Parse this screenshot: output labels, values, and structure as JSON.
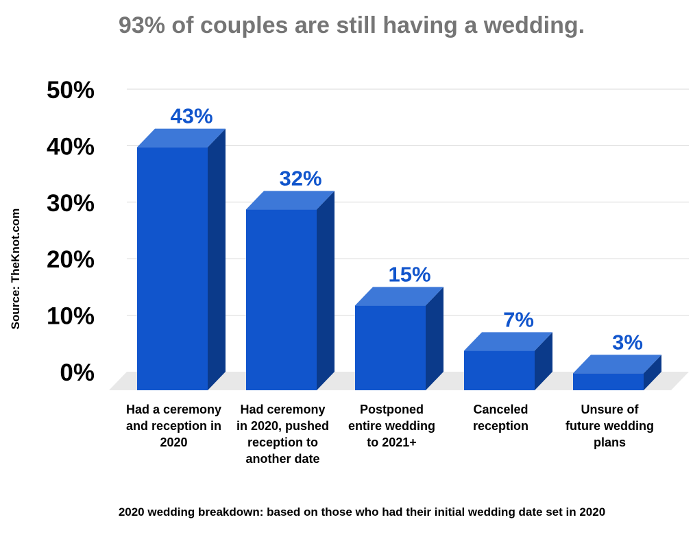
{
  "chart_data": {
    "type": "bar",
    "title": "93% of couples are still having a wedding.",
    "xlabel": "2020 wedding breakdown: based on those who had their initial wedding date set in 2020",
    "ylabel": "",
    "source": "Source: TheKnot.com",
    "ylim": [
      0,
      50
    ],
    "yticks": [
      "0%",
      "10%",
      "20%",
      "30%",
      "40%",
      "50%"
    ],
    "categories": [
      [
        "Had a ceremony",
        "and reception in",
        "2020"
      ],
      [
        "Had ceremony",
        "in 2020, pushed",
        "reception to",
        "another date"
      ],
      [
        "Postponed",
        "entire wedding",
        "to 2021+"
      ],
      [
        "Canceled",
        "reception"
      ],
      [
        "Unsure of",
        "future wedding",
        "plans"
      ]
    ],
    "values": [
      43,
      32,
      15,
      7,
      3
    ],
    "data_labels": [
      "43%",
      "32%",
      "15%",
      "7%",
      "3%"
    ],
    "grid": true,
    "legend": "none",
    "colors": {
      "bar_front": "#1155cc",
      "bar_top": "#3d78d8",
      "bar_side": "#0b3a8a",
      "data_label": "#1155cc",
      "title": "#757575",
      "gridline": "#d9d9d9",
      "floor": "#e8e8e8"
    }
  }
}
